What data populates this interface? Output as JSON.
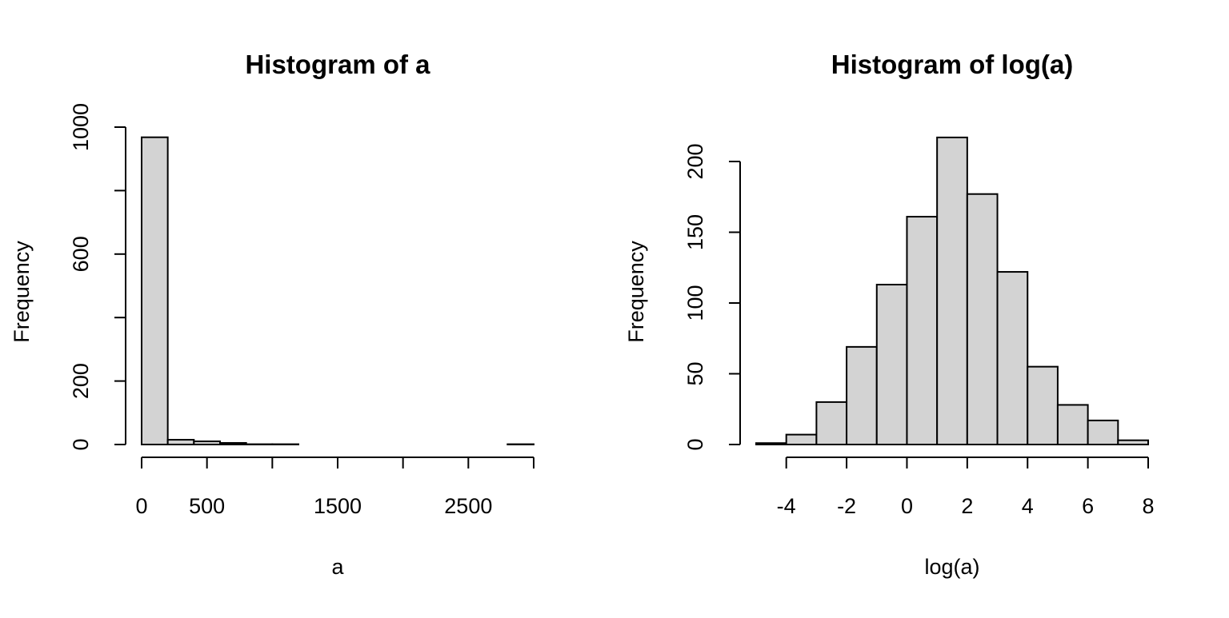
{
  "bar_fill": "#d3d3d3",
  "bar_stroke": "#000000",
  "axis_color": "#000000",
  "chart_data": [
    {
      "type": "bar",
      "title": "Histogram of a",
      "xlabel": "a",
      "ylabel": "Frequency",
      "xlim": [
        0,
        3000
      ],
      "ylim": [
        0,
        1000
      ],
      "bins": [
        {
          "from": 0,
          "to": 200,
          "value": 968
        },
        {
          "from": 200,
          "to": 400,
          "value": 15
        },
        {
          "from": 400,
          "to": 600,
          "value": 10
        },
        {
          "from": 600,
          "to": 800,
          "value": 5
        },
        {
          "from": 800,
          "to": 1000,
          "value": 1
        },
        {
          "from": 1000,
          "to": 1200,
          "value": 1
        },
        {
          "from": 1200,
          "to": 1400,
          "value": 0
        },
        {
          "from": 1400,
          "to": 1600,
          "value": 0
        },
        {
          "from": 1600,
          "to": 1800,
          "value": 0
        },
        {
          "from": 1800,
          "to": 2000,
          "value": 0
        },
        {
          "from": 2000,
          "to": 2200,
          "value": 0
        },
        {
          "from": 2200,
          "to": 2400,
          "value": 0
        },
        {
          "from": 2400,
          "to": 2600,
          "value": 0
        },
        {
          "from": 2600,
          "to": 2800,
          "value": 0
        },
        {
          "from": 2800,
          "to": 3000,
          "value": 1
        }
      ],
      "x_ticks": [
        0,
        500,
        1000,
        1500,
        2000,
        2500,
        3000
      ],
      "x_tick_labels": [
        "0",
        "500",
        "",
        "1500",
        "",
        "2500",
        ""
      ],
      "y_ticks": [
        0,
        200,
        400,
        600,
        800,
        1000
      ],
      "y_tick_labels": [
        "0",
        "200",
        "",
        "600",
        "",
        "1000"
      ]
    },
    {
      "type": "bar",
      "title": "Histogram of log(a)",
      "xlabel": "log(a)",
      "ylabel": "Frequency",
      "xlim": [
        -5,
        8
      ],
      "ylim": [
        0,
        210
      ],
      "bins": [
        {
          "from": -5,
          "to": -4,
          "value": 1
        },
        {
          "from": -4,
          "to": -3,
          "value": 7
        },
        {
          "from": -3,
          "to": -2,
          "value": 30
        },
        {
          "from": -2,
          "to": -1,
          "value": 69
        },
        {
          "from": -1,
          "to": 0,
          "value": 113
        },
        {
          "from": 0,
          "to": 1,
          "value": 161
        },
        {
          "from": 1,
          "to": 2,
          "value": 217
        },
        {
          "from": 2,
          "to": 3,
          "value": 177
        },
        {
          "from": 3,
          "to": 4,
          "value": 122
        },
        {
          "from": 4,
          "to": 5,
          "value": 55
        },
        {
          "from": 5,
          "to": 6,
          "value": 28
        },
        {
          "from": 6,
          "to": 7,
          "value": 17
        },
        {
          "from": 7,
          "to": 8,
          "value": 3
        }
      ],
      "x_ticks": [
        -4,
        -2,
        0,
        2,
        4,
        6,
        8
      ],
      "x_tick_labels": [
        "-4",
        "-2",
        "0",
        "2",
        "4",
        "6",
        "8"
      ],
      "y_ticks": [
        0,
        50,
        100,
        150,
        200
      ],
      "y_tick_labels": [
        "0",
        "50",
        "100",
        "150",
        "200"
      ]
    }
  ]
}
